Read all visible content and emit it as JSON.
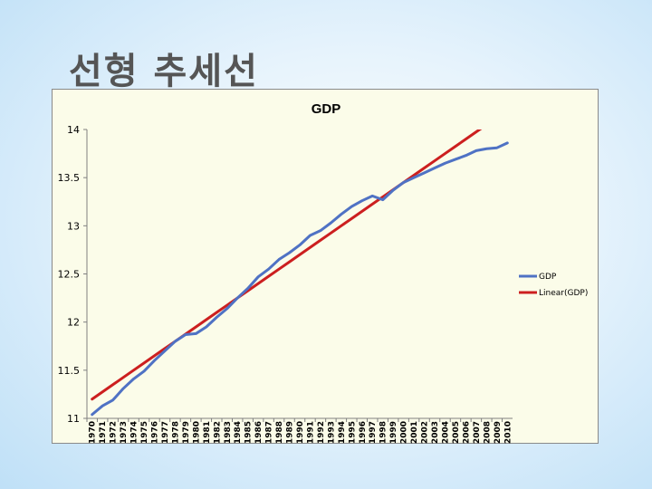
{
  "slide": {
    "title": "선형 추세선"
  },
  "chart_data": {
    "type": "line",
    "title": "GDP",
    "xlabel": "",
    "ylabel": "",
    "ylim": [
      11,
      14
    ],
    "yticks": [
      11,
      11.5,
      12,
      12.5,
      13,
      13.5,
      14
    ],
    "categories": [
      "1970",
      "1971",
      "1972",
      "1973",
      "1974",
      "1975",
      "1976",
      "1977",
      "1978",
      "1979",
      "1980",
      "1981",
      "1982",
      "1983",
      "1984",
      "1985",
      "1986",
      "1987",
      "1988",
      "1989",
      "1990",
      "1991",
      "1992",
      "1993",
      "1994",
      "1995",
      "1996",
      "1997",
      "1998",
      "1999",
      "2000",
      "2001",
      "2002",
      "2003",
      "2004",
      "2005",
      "2006",
      "2007",
      "2008",
      "2009",
      "2010"
    ],
    "series": [
      {
        "name": "GDP",
        "color": "#4f72c4",
        "values": [
          11.04,
          11.13,
          11.19,
          11.31,
          11.41,
          11.49,
          11.6,
          11.7,
          11.8,
          11.87,
          11.88,
          11.95,
          12.05,
          12.14,
          12.25,
          12.35,
          12.47,
          12.55,
          12.65,
          12.72,
          12.8,
          12.9,
          12.95,
          13.03,
          13.12,
          13.2,
          13.26,
          13.31,
          13.27,
          13.37,
          13.45,
          13.5,
          13.55,
          13.6,
          13.65,
          13.69,
          13.73,
          13.78,
          13.8,
          13.81,
          13.86
        ]
      },
      {
        "name": "Linear(GDP)",
        "color": "#cc1f1f",
        "type": "linear-trend",
        "values": [
          11.2,
          11.275,
          11.35,
          11.425,
          11.5,
          11.575,
          11.65,
          11.725,
          11.8,
          11.875,
          11.95,
          12.025,
          12.1,
          12.175,
          12.25,
          12.325,
          12.4,
          12.475,
          12.55,
          12.625,
          12.7,
          12.775,
          12.85,
          12.925,
          13.0,
          13.075,
          13.15,
          13.225,
          13.3,
          13.375,
          13.45,
          13.525,
          13.6,
          13.675,
          13.75,
          13.825,
          13.9,
          13.975,
          14.05,
          14.125,
          14.2
        ]
      }
    ],
    "legend": {
      "position": "right",
      "items": [
        "GDP",
        "Linear(GDP)"
      ]
    },
    "grid": false
  }
}
